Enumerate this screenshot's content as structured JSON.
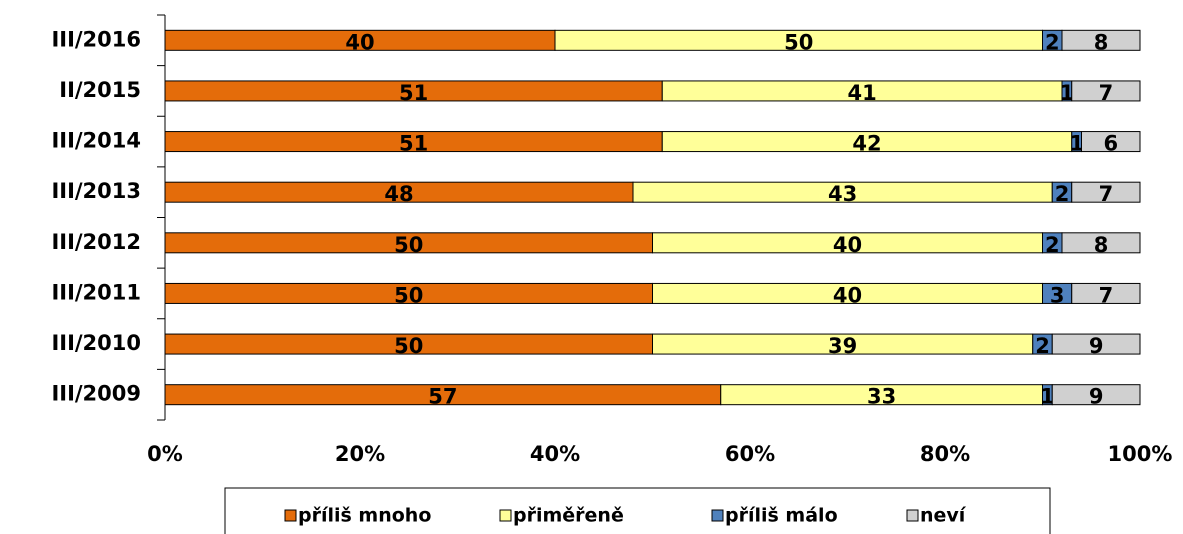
{
  "chart_data": {
    "type": "bar",
    "orientation": "horizontal",
    "stacked": true,
    "categories": [
      "III/2016",
      "II/2015",
      "III/2014",
      "III/2013",
      "III/2012",
      "III/2011",
      "III/2010",
      "III/2009"
    ],
    "series": [
      {
        "name": "příliš mnoho",
        "color": "#e46c0a",
        "values": [
          40,
          51,
          51,
          48,
          50,
          50,
          50,
          57
        ]
      },
      {
        "name": "přiměřeně",
        "color": "#ffff99",
        "values": [
          50,
          41,
          42,
          43,
          40,
          40,
          39,
          33
        ]
      },
      {
        "name": "příliš málo",
        "color": "#4f81bd",
        "values": [
          2,
          1,
          1,
          2,
          2,
          3,
          2,
          1
        ]
      },
      {
        "name": "neví",
        "color": "#d0d0d0",
        "values": [
          8,
          7,
          6,
          7,
          8,
          7,
          9,
          9
        ]
      }
    ],
    "xlim": [
      0,
      100
    ],
    "xticks": [
      {
        "value": 0,
        "label": "0%"
      },
      {
        "value": 20,
        "label": "20%"
      },
      {
        "value": 40,
        "label": "40%"
      },
      {
        "value": 60,
        "label": "60%"
      },
      {
        "value": 80,
        "label": "80%"
      },
      {
        "value": 100,
        "label": "100%"
      }
    ],
    "legend": "bottom"
  }
}
